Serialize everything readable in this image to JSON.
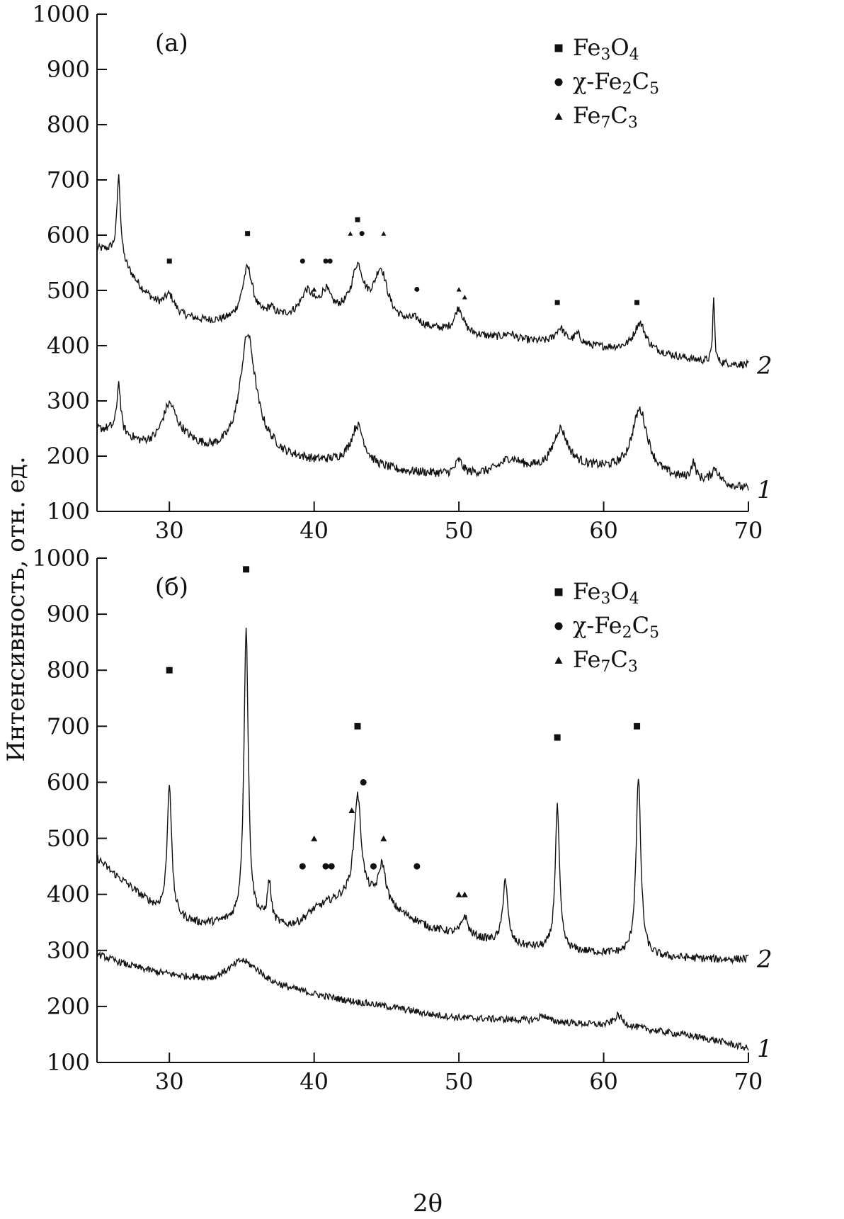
{
  "chart_data": [
    {
      "type": "line",
      "panel_label": "(a)",
      "xlabel": "2θ",
      "ylabel": "Интенсивность, отн. ед.",
      "xlim": [
        25,
        70
      ],
      "ylim": [
        100,
        1000
      ],
      "xticks": [
        30,
        40,
        50,
        60,
        70
      ],
      "yticks": [
        100,
        200,
        300,
        400,
        500,
        600,
        700,
        800,
        900,
        1000
      ],
      "legend": [
        {
          "marker": "square",
          "label": "Fe3O4",
          "parts": [
            [
              "Fe",
              0
            ],
            [
              "3",
              1
            ],
            [
              "O",
              0
            ],
            [
              "4",
              1
            ]
          ]
        },
        {
          "marker": "circle",
          "label": "χ-Fe2C5",
          "parts": [
            [
              "χ-Fe",
              0
            ],
            [
              "2",
              1
            ],
            [
              "C",
              0
            ],
            [
              "5",
              1
            ]
          ]
        },
        {
          "marker": "triangle",
          "label": "Fe7C3",
          "parts": [
            [
              "Fe",
              0
            ],
            [
              "7",
              1
            ],
            [
              "C",
              0
            ],
            [
              "3",
              1
            ]
          ]
        }
      ],
      "series": [
        {
          "label": "2",
          "baseline": [
            [
              25,
              575
            ],
            [
              26,
              570
            ],
            [
              27,
              540
            ],
            [
              28,
              505
            ],
            [
              29,
              478
            ],
            [
              30,
              462
            ],
            [
              31,
              452
            ],
            [
              32,
              446
            ],
            [
              33,
              443
            ],
            [
              34,
              443
            ],
            [
              36,
              445
            ],
            [
              38,
              450
            ],
            [
              40,
              456
            ],
            [
              42,
              455
            ],
            [
              44,
              450
            ],
            [
              46,
              440
            ],
            [
              48,
              430
            ],
            [
              50,
              422
            ],
            [
              52,
              415
            ],
            [
              54,
              410
            ],
            [
              56,
              405
            ],
            [
              58,
              400
            ],
            [
              60,
              396
            ],
            [
              62,
              392
            ],
            [
              64,
              385
            ],
            [
              66,
              375
            ],
            [
              68,
              368
            ],
            [
              70,
              365
            ]
          ],
          "peaks": [
            [
              26.5,
              150,
              0.15
            ],
            [
              30,
              30,
              0.4
            ],
            [
              35.4,
              95,
              0.45
            ],
            [
              37,
              15,
              0.3
            ],
            [
              39.5,
              40,
              0.5
            ],
            [
              40.8,
              38,
              0.4
            ],
            [
              43,
              85,
              0.5
            ],
            [
              44.6,
              85,
              0.55
            ],
            [
              47,
              10,
              0.4
            ],
            [
              50,
              45,
              0.35
            ],
            [
              53.5,
              10,
              0.4
            ],
            [
              57,
              28,
              0.4
            ],
            [
              58.2,
              18,
              0.3
            ],
            [
              62.5,
              50,
              0.5
            ],
            [
              67.6,
              118,
              0.08
            ]
          ],
          "noise": 7
        },
        {
          "label": "1",
          "baseline": [
            [
              25,
              248
            ],
            [
              26,
              246
            ],
            [
              27,
              235
            ],
            [
              28,
              222
            ],
            [
              29,
              220
            ],
            [
              30,
              228
            ],
            [
              31,
              228
            ],
            [
              32,
              217
            ],
            [
              33,
              210
            ],
            [
              34,
              212
            ],
            [
              36,
              230
            ],
            [
              37,
              215
            ],
            [
              38,
              200
            ],
            [
              40,
              190
            ],
            [
              42,
              188
            ],
            [
              44,
              180
            ],
            [
              46,
              172
            ],
            [
              48,
              168
            ],
            [
              50,
              165
            ],
            [
              52,
              168
            ],
            [
              54,
              175
            ],
            [
              56,
              175
            ],
            [
              58,
              180
            ],
            [
              60,
              175
            ],
            [
              62,
              170
            ],
            [
              64,
              162
            ],
            [
              66,
              155
            ],
            [
              68,
              150
            ],
            [
              70,
              140
            ]
          ],
          "peaks": [
            [
              26.5,
              90,
              0.15
            ],
            [
              30,
              65,
              0.6
            ],
            [
              35.4,
              195,
              0.6
            ],
            [
              43,
              70,
              0.55
            ],
            [
              50,
              25,
              0.3
            ],
            [
              53.5,
              20,
              0.8
            ],
            [
              57,
              70,
              0.6
            ],
            [
              62.5,
              115,
              0.65
            ],
            [
              66.2,
              30,
              0.2
            ],
            [
              67.7,
              25,
              0.3
            ]
          ],
          "noise": 8
        }
      ],
      "phase_markers": [
        {
          "phase": "square",
          "x": 30,
          "y": 553
        },
        {
          "phase": "square",
          "x": 35.4,
          "y": 603
        },
        {
          "phase": "square",
          "x": 43,
          "y": 628
        },
        {
          "phase": "square",
          "x": 56.8,
          "y": 478
        },
        {
          "phase": "square",
          "x": 62.3,
          "y": 478
        },
        {
          "phase": "circle",
          "x": 39.2,
          "y": 553
        },
        {
          "phase": "circle",
          "x": 40.8,
          "y": 553
        },
        {
          "phase": "circle",
          "x": 41.1,
          "y": 553
        },
        {
          "phase": "circle",
          "x": 43.3,
          "y": 603
        },
        {
          "phase": "circle",
          "x": 47.1,
          "y": 502
        },
        {
          "phase": "triangle",
          "x": 40,
          "y": 502
        },
        {
          "phase": "triangle",
          "x": 42.5,
          "y": 603
        },
        {
          "phase": "triangle",
          "x": 44.8,
          "y": 603
        },
        {
          "phase": "triangle",
          "x": 50,
          "y": 502
        },
        {
          "phase": "triangle",
          "x": 50.4,
          "y": 488
        }
      ]
    },
    {
      "type": "line",
      "panel_label": "(б)",
      "xlabel": "2θ",
      "ylabel": "Интенсивность, отн. ед.",
      "xlim": [
        25,
        70
      ],
      "ylim": [
        100,
        1000
      ],
      "xticks": [
        30,
        40,
        50,
        60,
        70
      ],
      "yticks": [
        100,
        200,
        300,
        400,
        500,
        600,
        700,
        800,
        900,
        1000
      ],
      "legend": [
        {
          "marker": "square",
          "label": "Fe3O4",
          "parts": [
            [
              "Fe",
              0
            ],
            [
              "3",
              1
            ],
            [
              "O",
              0
            ],
            [
              "4",
              1
            ]
          ]
        },
        {
          "marker": "circle",
          "label": "χ-Fe2C5",
          "parts": [
            [
              "χ-Fe",
              0
            ],
            [
              "2",
              1
            ],
            [
              "C",
              0
            ],
            [
              "5",
              1
            ]
          ]
        },
        {
          "marker": "triangle",
          "label": "Fe7C3",
          "parts": [
            [
              "Fe",
              0
            ],
            [
              "7",
              1
            ],
            [
              "C",
              0
            ],
            [
              "3",
              1
            ]
          ]
        }
      ],
      "series": [
        {
          "label": "2",
          "baseline": [
            [
              25,
              465
            ],
            [
              26,
              440
            ],
            [
              27,
              420
            ],
            [
              28,
              398
            ],
            [
              29,
              378
            ],
            [
              30,
              365
            ],
            [
              31,
              355
            ],
            [
              32,
              348
            ],
            [
              33,
              348
            ],
            [
              34,
              350
            ],
            [
              35,
              352
            ],
            [
              36,
              355
            ],
            [
              37,
              350
            ],
            [
              38,
              343
            ],
            [
              39,
              350
            ],
            [
              40,
              372
            ],
            [
              41,
              385
            ],
            [
              42,
              392
            ],
            [
              44,
              390
            ],
            [
              46,
              365
            ],
            [
              48,
              340
            ],
            [
              50,
              328
            ],
            [
              52,
              318
            ],
            [
              54,
              308
            ],
            [
              56,
              302
            ],
            [
              58,
              298
            ],
            [
              60,
              295
            ],
            [
              62,
              292
            ],
            [
              64,
              288
            ],
            [
              66,
              286
            ],
            [
              68,
              284
            ],
            [
              70,
              285
            ]
          ],
          "peaks": [
            [
              30,
              235,
              0.18
            ],
            [
              35.3,
              525,
              0.18
            ],
            [
              36.9,
              70,
              0.15
            ],
            [
              43,
              185,
              0.3
            ],
            [
              44.7,
              70,
              0.3
            ],
            [
              50.4,
              35,
              0.25
            ],
            [
              53.2,
              115,
              0.2
            ],
            [
              56.8,
              255,
              0.18
            ],
            [
              62.4,
              315,
              0.2
            ]
          ],
          "noise": 7
        },
        {
          "label": "1",
          "baseline": [
            [
              25,
              293
            ],
            [
              27,
              275
            ],
            [
              29,
              262
            ],
            [
              31,
              254
            ],
            [
              33,
              250
            ],
            [
              34,
              260
            ],
            [
              35,
              268
            ],
            [
              36,
              262
            ],
            [
              37,
              245
            ],
            [
              38,
              235
            ],
            [
              40,
              222
            ],
            [
              42,
              212
            ],
            [
              44,
              204
            ],
            [
              46,
              196
            ],
            [
              48,
              186
            ],
            [
              50,
              180
            ],
            [
              52,
              178
            ],
            [
              54,
              176
            ],
            [
              56,
              174
            ],
            [
              58,
              170
            ],
            [
              60,
              167
            ],
            [
              61,
              172
            ],
            [
              62,
              164
            ],
            [
              64,
              155
            ],
            [
              66,
              148
            ],
            [
              68,
              138
            ],
            [
              70,
              125
            ]
          ],
          "peaks": [
            [
              35,
              15,
              0.8
            ],
            [
              55.8,
              10,
              0.3
            ],
            [
              61,
              12,
              0.3
            ]
          ],
          "noise": 6
        }
      ],
      "phase_markers": [
        {
          "phase": "square",
          "x": 30,
          "y": 800
        },
        {
          "phase": "square",
          "x": 35.3,
          "y": 980
        },
        {
          "phase": "square",
          "x": 43,
          "y": 700
        },
        {
          "phase": "square",
          "x": 56.8,
          "y": 680
        },
        {
          "phase": "square",
          "x": 62.3,
          "y": 700
        },
        {
          "phase": "circle",
          "x": 39.2,
          "y": 450
        },
        {
          "phase": "circle",
          "x": 40.8,
          "y": 450
        },
        {
          "phase": "circle",
          "x": 41.2,
          "y": 450
        },
        {
          "phase": "circle",
          "x": 43.4,
          "y": 600
        },
        {
          "phase": "circle",
          "x": 44.1,
          "y": 450
        },
        {
          "phase": "circle",
          "x": 47.1,
          "y": 450
        },
        {
          "phase": "triangle",
          "x": 40,
          "y": 500
        },
        {
          "phase": "triangle",
          "x": 42.6,
          "y": 550
        },
        {
          "phase": "triangle",
          "x": 44.8,
          "y": 500
        },
        {
          "phase": "triangle",
          "x": 50,
          "y": 400
        },
        {
          "phase": "triangle",
          "x": 50.4,
          "y": 400
        }
      ]
    }
  ]
}
